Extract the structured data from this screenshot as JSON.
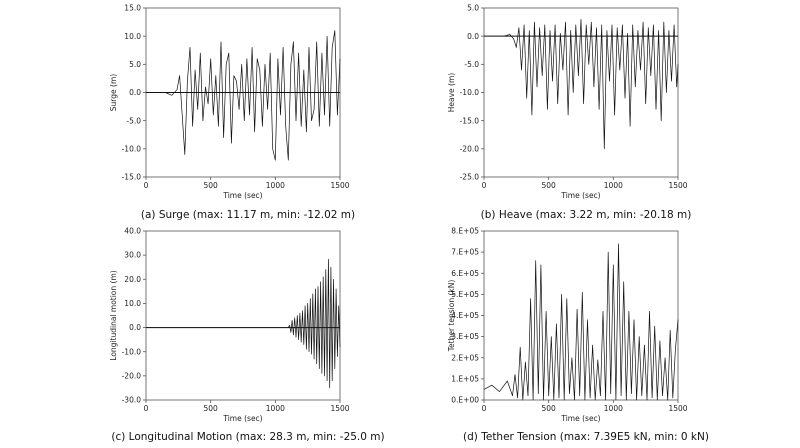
{
  "chart_data": [
    {
      "type": "line",
      "id": "surge",
      "caption": "(a) Surge (max: 11.17 m, min: -12.02 m)",
      "xlabel": "Time (sec)",
      "ylabel": "Surge (m)",
      "xlim": [
        0,
        1500
      ],
      "ylim": [
        -15,
        15
      ],
      "xticks": [
        0,
        500,
        1000,
        1500
      ],
      "xtick_labels": [
        "0",
        "500",
        "1000",
        "1500"
      ],
      "yticks": [
        15,
        10,
        5,
        0,
        -5,
        -10,
        -15
      ],
      "ytick_labels": [
        "15.0",
        "10.0",
        "5.0",
        "0.0",
        "-5.0",
        "-10.0",
        "-15.0"
      ],
      "grid": false,
      "series": [
        {
          "x": [
            0,
            150,
            200,
            240,
            260,
            280,
            300,
            320,
            340,
            360,
            380,
            400,
            420,
            440,
            460,
            480,
            500,
            520,
            540,
            560,
            580,
            600,
            620,
            640,
            660,
            680,
            700,
            720,
            740,
            760,
            780,
            800,
            820,
            840,
            860,
            880,
            900,
            920,
            940,
            960,
            980,
            1000,
            1020,
            1040,
            1060,
            1080,
            1100,
            1120,
            1140,
            1160,
            1180,
            1200,
            1220,
            1240,
            1260,
            1280,
            1300,
            1320,
            1340,
            1360,
            1380,
            1400,
            1420,
            1440,
            1460,
            1480,
            1500
          ],
          "y": [
            0,
            0,
            -0.5,
            0.5,
            3,
            -4,
            -11,
            2,
            8,
            -6,
            4,
            -3,
            7,
            -5,
            1,
            -2,
            6,
            -4,
            3,
            -6,
            9,
            -8,
            5,
            7,
            -9,
            3,
            2,
            -3,
            5,
            -5,
            6,
            -4,
            8,
            -7,
            6,
            4,
            -6,
            5,
            -3,
            7,
            -10,
            -12,
            6,
            -4,
            8,
            -6,
            -12,
            5,
            9,
            -5,
            7,
            -6,
            4,
            -7,
            8,
            -5,
            -3,
            9,
            -6,
            7,
            -4,
            10,
            -6,
            8,
            11,
            -4,
            6
          ]
        }
      ]
    },
    {
      "type": "line",
      "id": "heave",
      "caption": "(b) Heave (max: 3.22 m, min: -20.18 m)",
      "xlabel": "Time (sec)",
      "ylabel": "Heave (m)",
      "xlim": [
        0,
        1500
      ],
      "ylim": [
        -25,
        5
      ],
      "xticks": [
        0,
        500,
        1000,
        1500
      ],
      "xtick_labels": [
        "0",
        "500",
        "1000",
        "1500"
      ],
      "yticks": [
        5,
        0,
        -5,
        -10,
        -15,
        -20,
        -25
      ],
      "ytick_labels": [
        "5.0",
        "0.0",
        "-5.0",
        "-10.0",
        "-15.0",
        "-20.0",
        "-25.0"
      ],
      "grid": false,
      "series": [
        {
          "x": [
            0,
            150,
            200,
            230,
            250,
            270,
            290,
            310,
            330,
            350,
            370,
            390,
            410,
            430,
            450,
            470,
            490,
            510,
            530,
            550,
            570,
            590,
            610,
            630,
            650,
            670,
            690,
            710,
            730,
            750,
            770,
            790,
            810,
            830,
            850,
            870,
            890,
            910,
            930,
            950,
            970,
            990,
            1010,
            1030,
            1050,
            1070,
            1090,
            1110,
            1130,
            1150,
            1170,
            1190,
            1210,
            1230,
            1250,
            1270,
            1290,
            1310,
            1330,
            1350,
            1370,
            1390,
            1410,
            1430,
            1450,
            1470,
            1490,
            1500
          ],
          "y": [
            0,
            0,
            0.3,
            -0.5,
            -2,
            1.5,
            -6,
            2,
            -11,
            1,
            -14,
            2.5,
            -9,
            1.5,
            -7,
            2,
            -13,
            1,
            -8,
            2,
            -12,
            0.5,
            -6,
            2.5,
            -14,
            1,
            -10,
            2,
            -7,
            3,
            -12,
            2,
            -5,
            2.5,
            -9,
            1.5,
            -13,
            2,
            -20,
            1,
            -8,
            2,
            -14,
            1.5,
            -6,
            2,
            -11,
            0.5,
            -16,
            2,
            -9,
            1,
            -6,
            2.5,
            -12,
            1.5,
            -7,
            2,
            -13,
            1,
            -15,
            2.5,
            -10,
            1,
            -8,
            2,
            -9,
            -5
          ]
        }
      ]
    },
    {
      "type": "line",
      "id": "longitudinal",
      "caption": "(c) Longitudinal Motion (max: 28.3 m, min: -25.0 m)",
      "xlabel": "Time (sec)",
      "ylabel": "Longitudinal motion (m)",
      "xlim": [
        0,
        1500
      ],
      "ylim": [
        -30,
        40
      ],
      "xticks": [
        0,
        500,
        1000,
        1500
      ],
      "xtick_labels": [
        "0",
        "500",
        "1000",
        "1500"
      ],
      "yticks": [
        40,
        30,
        20,
        10,
        0,
        -10,
        -20,
        -30
      ],
      "ytick_labels": [
        "40.0",
        "30.0",
        "20.0",
        "10.0",
        "0.0",
        "-10.0",
        "-20.0",
        "-30.0"
      ],
      "grid": false,
      "series": [
        {
          "x": [
            0,
            1100,
            1110,
            1120,
            1130,
            1140,
            1150,
            1160,
            1170,
            1180,
            1190,
            1200,
            1210,
            1220,
            1230,
            1240,
            1250,
            1260,
            1270,
            1280,
            1290,
            1300,
            1310,
            1320,
            1330,
            1340,
            1350,
            1360,
            1370,
            1380,
            1390,
            1400,
            1410,
            1420,
            1430,
            1440,
            1450,
            1460,
            1470,
            1480,
            1490,
            1500
          ],
          "y": [
            0,
            0,
            1,
            -2,
            3,
            -3,
            4,
            -4,
            5,
            -5,
            6,
            -6,
            7,
            -7,
            9,
            -9,
            10,
            -10,
            12,
            -11,
            14,
            -13,
            16,
            -15,
            17,
            -17,
            19,
            -19,
            21,
            -20,
            24,
            -22,
            28.3,
            -25,
            25,
            -22,
            20,
            -17,
            16,
            -12,
            9,
            -8
          ]
        }
      ]
    },
    {
      "type": "line",
      "id": "tension",
      "caption": "(d) Tether Tension (max: 7.39E5 kN, min: 0 kN)",
      "xlabel": "Time (sec)",
      "ylabel": "Tether tension (kN)",
      "xlim": [
        0,
        1500
      ],
      "ylim": [
        0,
        800000
      ],
      "xticks": [
        0,
        500,
        1000,
        1500
      ],
      "xtick_labels": [
        "0",
        "500",
        "1000",
        "1500"
      ],
      "yticks": [
        800000,
        700000,
        600000,
        500000,
        400000,
        300000,
        200000,
        100000,
        0
      ],
      "ytick_labels": [
        "8.E+05",
        "7.E+05",
        "6.E+05",
        "5.E+05",
        "4.E+05",
        "3.E+05",
        "2.E+05",
        "1.E+05",
        "0.E+00"
      ],
      "grid": false,
      "series": [
        {
          "x": [
            0,
            60,
            120,
            180,
            220,
            240,
            260,
            280,
            300,
            320,
            340,
            360,
            380,
            400,
            420,
            440,
            460,
            480,
            500,
            520,
            540,
            560,
            580,
            600,
            620,
            640,
            660,
            680,
            700,
            720,
            740,
            760,
            780,
            800,
            820,
            840,
            860,
            880,
            900,
            920,
            940,
            960,
            980,
            1000,
            1020,
            1040,
            1060,
            1080,
            1100,
            1120,
            1140,
            1160,
            1180,
            1200,
            1220,
            1240,
            1260,
            1280,
            1300,
            1320,
            1340,
            1360,
            1380,
            1400,
            1420,
            1440,
            1460,
            1480,
            1500
          ],
          "y": [
            50000,
            70000,
            40000,
            90000,
            20000,
            120000,
            10000,
            250000,
            0,
            180000,
            20000,
            480000,
            0,
            660000,
            30000,
            640000,
            0,
            420000,
            20000,
            300000,
            0,
            360000,
            10000,
            500000,
            0,
            480000,
            30000,
            200000,
            0,
            430000,
            20000,
            510000,
            0,
            380000,
            10000,
            260000,
            0,
            190000,
            20000,
            420000,
            0,
            700000,
            30000,
            640000,
            0,
            739000,
            20000,
            560000,
            0,
            420000,
            30000,
            380000,
            0,
            300000,
            20000,
            260000,
            0,
            420000,
            10000,
            350000,
            0,
            280000,
            20000,
            200000,
            0,
            330000,
            10000,
            240000,
            380000
          ]
        }
      ]
    }
  ]
}
